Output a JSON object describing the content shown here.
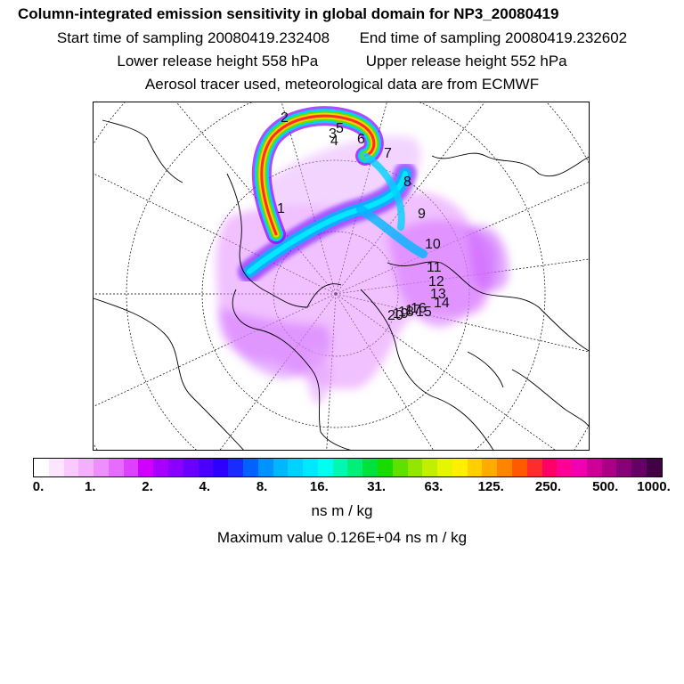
{
  "title": "Column-integrated emission sensitivity in global domain for NP3_20080419",
  "sampling": {
    "start_label": "Start time of sampling 20080419.232408",
    "end_label": "End time of sampling 20080419.232602"
  },
  "release": {
    "lower_label": "Lower release height  558 hPa",
    "upper_label": "Upper release height  552 hPa"
  },
  "source_note": "Aerosol tracer used, meteorological data are from ECMWF",
  "colorbar": {
    "colors": [
      "#ffffff",
      "#fde4ff",
      "#f9c9ff",
      "#f5afff",
      "#ef8fff",
      "#e86bff",
      "#df3fff",
      "#cf00ff",
      "#a800ff",
      "#8a00ff",
      "#6a00ff",
      "#4b00ff",
      "#2d00ff",
      "#1a2bff",
      "#0062ff",
      "#0092ff",
      "#00b6ff",
      "#00d2ff",
      "#00e8ff",
      "#00ffee",
      "#00f8b0",
      "#00ee7a",
      "#00e13c",
      "#18dc00",
      "#5ee000",
      "#93e600",
      "#c2ef00",
      "#e6f500",
      "#fff000",
      "#ffcf00",
      "#ffab00",
      "#ff8400",
      "#ff5a00",
      "#ff2c2c",
      "#ff0066",
      "#ff0096",
      "#f000b0",
      "#cc0099",
      "#aa0088",
      "#880077",
      "#660066",
      "#440044"
    ],
    "tick_labels": [
      "0.",
      "1.",
      "2.",
      "4.",
      "8.",
      "16.",
      "31.",
      "63.",
      "125.",
      "250.",
      "500.",
      "1000."
    ],
    "unit": "ns m / kg"
  },
  "max_value_label": "Maximum value  0.126E+04 ns m / kg",
  "map": {
    "markers": [
      "2",
      "3",
      "4",
      "5",
      "6",
      "7",
      "8",
      "9",
      "10",
      "11",
      "12",
      "13",
      "14",
      "15",
      "16",
      "17",
      "18",
      "19",
      "20",
      "1"
    ]
  }
}
